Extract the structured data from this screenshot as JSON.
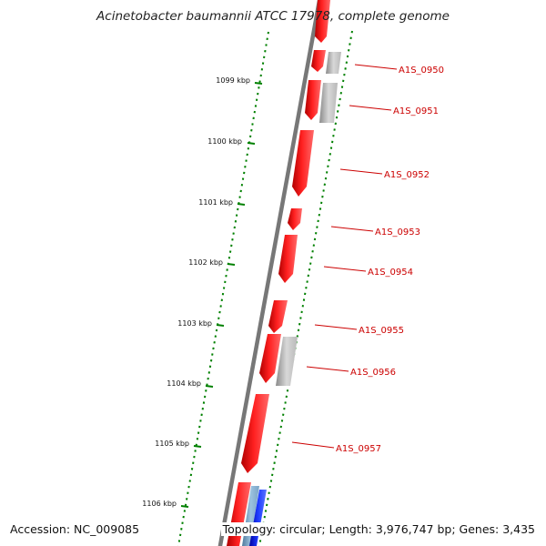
{
  "title": "Acinetobacter baumannii ATCC 17978, complete genome",
  "footer": {
    "accession": "Accession: NC_009085",
    "info": "Topology: circular; Length: 3,976,747 bp; Genes: 3,435"
  },
  "ticks": [
    "1099 kbp",
    "1100 kbp",
    "1101 kbp",
    "1102 kbp",
    "1103 kbp",
    "1104 kbp",
    "1105 kbp",
    "1106 kbp"
  ],
  "genes": [
    "A1S_0950",
    "A1S_0951",
    "A1S_0952",
    "A1S_0953",
    "A1S_0954",
    "A1S_0955",
    "A1S_0956",
    "A1S_0957"
  ],
  "colors": {
    "cds": "#ff0000",
    "other_feature": "#b0b0b0",
    "backbone": "#777777",
    "tick": "#008000",
    "label": "#cc0000",
    "blue_feature": "#0000ee",
    "lightblue_feature": "#7fa8c8"
  }
}
